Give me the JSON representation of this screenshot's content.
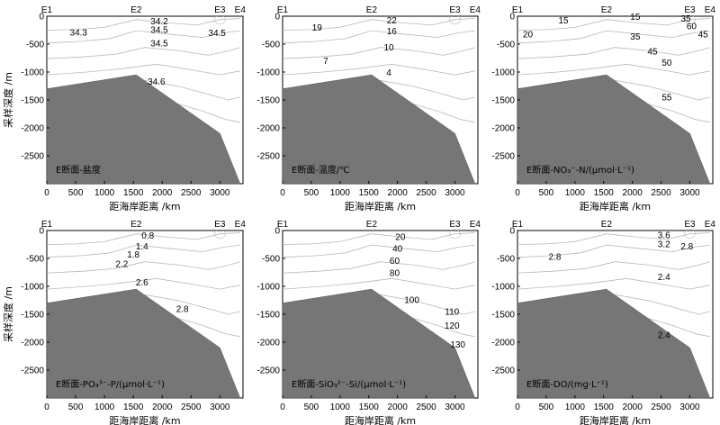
{
  "figure": {
    "panels_layout": "2 rows x 3 columns",
    "shared_ylabel": "采样深度 /m",
    "shared_xlabel": "距海岸距离 /km"
  },
  "chart_data": [
    {
      "type": "contour",
      "title": "E断面-盐度",
      "xlabel": "距海岸距离 /km",
      "ylabel": "采样深度 /m",
      "xlim": [
        0,
        3400
      ],
      "ylim": [
        -3000,
        0
      ],
      "xticks": [
        0,
        500,
        1000,
        1500,
        2000,
        2500,
        3000
      ],
      "yticks": [
        0,
        -500,
        -1000,
        -1500,
        -2000,
        -2500
      ],
      "stations": [
        {
          "name": "E1",
          "x": 0
        },
        {
          "name": "E2",
          "x": 1550
        },
        {
          "name": "E3",
          "x": 3000
        },
        {
          "name": "E4",
          "x": 3350
        }
      ],
      "seafloor": [
        [
          0,
          -1300
        ],
        [
          1550,
          -1050
        ],
        [
          3000,
          -2100
        ],
        [
          3350,
          -3000
        ]
      ],
      "contour_labels": [
        {
          "text": "34.3",
          "x": 550,
          "y": -290
        },
        {
          "text": "34.2",
          "x": 1950,
          "y": -90
        },
        {
          "text": "34.5",
          "x": 1950,
          "y": -240
        },
        {
          "text": "34.5",
          "x": 1950,
          "y": -480
        },
        {
          "text": "34.5",
          "x": 2950,
          "y": -300
        },
        {
          "text": "34.6",
          "x": 1900,
          "y": -1170
        }
      ]
    },
    {
      "type": "contour",
      "title": "E断面-温度/℃",
      "xlabel": "距海岸距离 /km",
      "ylabel": "",
      "xlim": [
        0,
        3400
      ],
      "ylim": [
        -3000,
        0
      ],
      "xticks": [
        0,
        500,
        1000,
        1500,
        2000,
        2500,
        3000
      ],
      "yticks": [
        0,
        -500,
        -1000,
        -1500,
        -2000,
        -2500
      ],
      "stations": [
        {
          "name": "E1",
          "x": 0
        },
        {
          "name": "E2",
          "x": 1550
        },
        {
          "name": "E3",
          "x": 3000
        },
        {
          "name": "E4",
          "x": 3350
        }
      ],
      "seafloor": [
        [
          0,
          -1300
        ],
        [
          1550,
          -1050
        ],
        [
          3000,
          -2100
        ],
        [
          3350,
          -3000
        ]
      ],
      "contour_labels": [
        {
          "text": "22",
          "x": 1900,
          "y": -70
        },
        {
          "text": "19",
          "x": 600,
          "y": -200
        },
        {
          "text": "16",
          "x": 1900,
          "y": -270
        },
        {
          "text": "10",
          "x": 1850,
          "y": -560
        },
        {
          "text": "7",
          "x": 750,
          "y": -800
        },
        {
          "text": "4",
          "x": 1850,
          "y": -1010
        }
      ]
    },
    {
      "type": "contour",
      "title": "E断面-NO₃⁻-N/(μmol·L⁻¹)",
      "xlabel": "距海岸距离 /km",
      "ylabel": "",
      "xlim": [
        0,
        3400
      ],
      "ylim": [
        -3000,
        0
      ],
      "xticks": [
        0,
        500,
        1000,
        1500,
        2000,
        2500,
        3000
      ],
      "yticks": [
        0,
        -500,
        -1000,
        -1500,
        -2000,
        -2500
      ],
      "stations": [
        {
          "name": "E1",
          "x": 0
        },
        {
          "name": "E2",
          "x": 1550
        },
        {
          "name": "E3",
          "x": 3000
        },
        {
          "name": "E4",
          "x": 3350
        }
      ],
      "seafloor": [
        [
          0,
          -1300
        ],
        [
          1550,
          -1050
        ],
        [
          3000,
          -2100
        ],
        [
          3350,
          -3000
        ]
      ],
      "contour_labels": [
        {
          "text": "15",
          "x": 800,
          "y": -70
        },
        {
          "text": "15",
          "x": 2050,
          "y": -10
        },
        {
          "text": "35",
          "x": 2930,
          "y": -40
        },
        {
          "text": "20",
          "x": 180,
          "y": -320
        },
        {
          "text": "35",
          "x": 2050,
          "y": -360
        },
        {
          "text": "60",
          "x": 3030,
          "y": -180
        },
        {
          "text": "45",
          "x": 3230,
          "y": -320
        },
        {
          "text": "45",
          "x": 2350,
          "y": -630
        },
        {
          "text": "50",
          "x": 2600,
          "y": -830
        },
        {
          "text": "55",
          "x": 2600,
          "y": -1450
        }
      ]
    },
    {
      "type": "contour",
      "title": "E断面-PO₄³⁻-P/(μmol·L⁻¹)",
      "xlabel": "距海岸距离 /km",
      "ylabel": "采样深度 /m",
      "xlim": [
        0,
        3400
      ],
      "ylim": [
        -3000,
        0
      ],
      "xticks": [
        0,
        500,
        1000,
        1500,
        2000,
        2500,
        3000
      ],
      "yticks": [
        0,
        -500,
        -1000,
        -1500,
        -2000,
        -2500
      ],
      "stations": [
        {
          "name": "E1",
          "x": 0
        },
        {
          "name": "E2",
          "x": 1550
        },
        {
          "name": "E3",
          "x": 3000
        },
        {
          "name": "E4",
          "x": 3350
        }
      ],
      "seafloor": [
        [
          0,
          -1300
        ],
        [
          1550,
          -1050
        ],
        [
          3000,
          -2100
        ],
        [
          3350,
          -3000
        ]
      ],
      "contour_labels": [
        {
          "text": "0.8",
          "x": 1750,
          "y": -90
        },
        {
          "text": "1.4",
          "x": 1650,
          "y": -280
        },
        {
          "text": "1.8",
          "x": 1500,
          "y": -430
        },
        {
          "text": "2.2",
          "x": 1300,
          "y": -600
        },
        {
          "text": "2.6",
          "x": 1650,
          "y": -930
        },
        {
          "text": "2.8",
          "x": 2350,
          "y": -1400
        }
      ]
    },
    {
      "type": "contour",
      "title": "E断面-SiO₃²⁻-Si/(μmol·L⁻¹)",
      "xlabel": "距海岸距离 /km",
      "ylabel": "",
      "xlim": [
        0,
        3400
      ],
      "ylim": [
        -3000,
        0
      ],
      "xticks": [
        0,
        500,
        1000,
        1500,
        2000,
        2500,
        3000
      ],
      "yticks": [
        0,
        -500,
        -1000,
        -1500,
        -2000,
        -2500
      ],
      "stations": [
        {
          "name": "E1",
          "x": 0
        },
        {
          "name": "E2",
          "x": 1550
        },
        {
          "name": "E3",
          "x": 3000
        },
        {
          "name": "E4",
          "x": 3350
        }
      ],
      "seafloor": [
        [
          0,
          -1300
        ],
        [
          1550,
          -1050
        ],
        [
          3000,
          -2100
        ],
        [
          3350,
          -3000
        ]
      ],
      "contour_labels": [
        {
          "text": "20",
          "x": 2050,
          "y": -110
        },
        {
          "text": "40",
          "x": 2000,
          "y": -320
        },
        {
          "text": "60",
          "x": 1950,
          "y": -540
        },
        {
          "text": "80",
          "x": 1950,
          "y": -760
        },
        {
          "text": "100",
          "x": 2250,
          "y": -1240
        },
        {
          "text": "110",
          "x": 2950,
          "y": -1450
        },
        {
          "text": "120",
          "x": 2950,
          "y": -1700
        },
        {
          "text": "130",
          "x": 3050,
          "y": -2040
        }
      ]
    },
    {
      "type": "contour",
      "title": "E断面-DO/(mg·L⁻¹)",
      "xlabel": "距海岸距离 /km",
      "ylabel": "",
      "xlim": [
        0,
        3400
      ],
      "ylim": [
        -3000,
        0
      ],
      "xticks": [
        0,
        500,
        1000,
        1500,
        2000,
        2500,
        3000
      ],
      "yticks": [
        0,
        -500,
        -1000,
        -1500,
        -2000,
        -2500
      ],
      "stations": [
        {
          "name": "E1",
          "x": 0
        },
        {
          "name": "E2",
          "x": 1550
        },
        {
          "name": "E3",
          "x": 3000
        },
        {
          "name": "E4",
          "x": 3350
        }
      ],
      "seafloor": [
        [
          0,
          -1300
        ],
        [
          1550,
          -1050
        ],
        [
          3000,
          -2100
        ],
        [
          3350,
          -3000
        ]
      ],
      "contour_labels": [
        {
          "text": "3.6",
          "x": 2550,
          "y": -80
        },
        {
          "text": "3.2",
          "x": 2550,
          "y": -240
        },
        {
          "text": "2.8",
          "x": 2950,
          "y": -280
        },
        {
          "text": "2.8",
          "x": 650,
          "y": -470
        },
        {
          "text": "2.4",
          "x": 2550,
          "y": -830
        },
        {
          "text": "2.4",
          "x": 2550,
          "y": -1870
        }
      ]
    }
  ]
}
